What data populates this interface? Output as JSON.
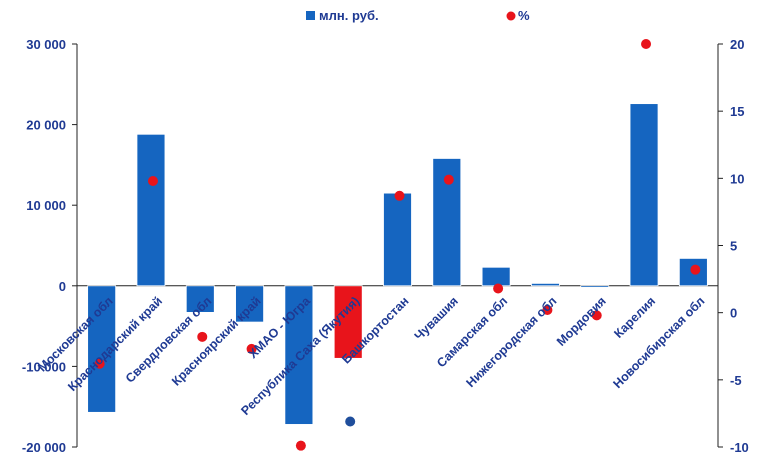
{
  "chart_data": {
    "type": "bar",
    "categories": [
      "Московская обл",
      "Краснодарский край",
      "Свердловская обл",
      "Красноярский край",
      "ХМАО - Югра",
      "Республика Саха (Якутия)",
      "Башкортостан",
      "Чувашия",
      "Самарская обл",
      "Нижегородская обл",
      "Мордовия",
      "Карелия",
      "Новосибирская обл"
    ],
    "series": [
      {
        "name": "млн. руб.",
        "type": "bar",
        "axis": "left",
        "values": [
          -15700,
          18800,
          -3300,
          -4500,
          -17200,
          -9000,
          11500,
          15800,
          2300,
          300,
          -200,
          22600,
          3400
        ]
      },
      {
        "name": "%",
        "type": "scatter",
        "axis": "right",
        "values": [
          -3.8,
          9.8,
          -1.8,
          -2.7,
          -9.9,
          -8.1,
          8.7,
          9.9,
          1.8,
          0.2,
          -0.2,
          20.0,
          3.2
        ]
      }
    ],
    "ylim_left": [
      -20000,
      30000
    ],
    "ylim_right": [
      -10,
      20
    ],
    "y_ticks_left": [
      "-20 000",
      "-10 000",
      "0",
      "10 000",
      "20 000",
      "30 000"
    ],
    "y_ticks_right": [
      "-10",
      "-5",
      "0",
      "5",
      "10",
      "15",
      "20"
    ],
    "legend_position": "top-center",
    "colors": {
      "bar": "#1565C0",
      "bar_highlight": "#E8141B",
      "point": "#E8141B",
      "point_outlier": "#1F4E9C",
      "text": "#1F3A93"
    },
    "highlight_index": 5,
    "outlier_point_index": 5,
    "grid": false
  }
}
